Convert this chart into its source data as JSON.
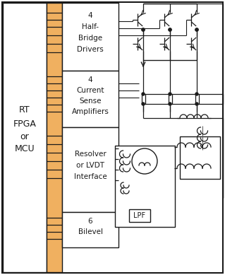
{
  "bg_color": "#ffffff",
  "orange_color": "#f0b060",
  "black": "#1a1a1a",
  "fig_width": 3.19,
  "fig_height": 3.89,
  "dpi": 100,
  "fpga_text": [
    "RT",
    "FPGA",
    "or",
    "MCU"
  ],
  "block1_label": [
    "4",
    "Half-",
    "Bridge",
    "Drivers"
  ],
  "block2_label": [
    "4",
    "Current",
    "Sense",
    "Amplifiers"
  ],
  "block3_label": [
    "Resolver",
    "or LVDT",
    "Interface"
  ],
  "block4_label": [
    "6",
    "Bilevel"
  ],
  "lpf_label": "LPF"
}
